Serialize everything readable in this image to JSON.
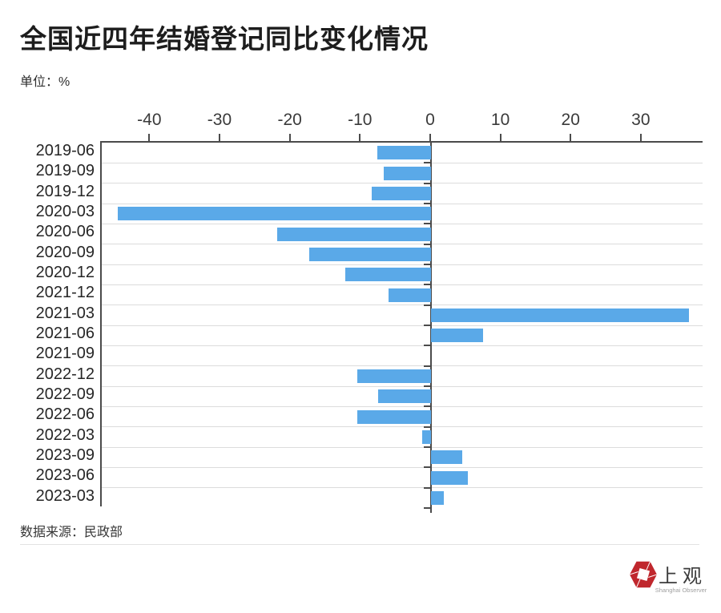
{
  "page": {
    "title": "全国近四年结婚登记同比变化情况",
    "unit_label": "单位：%",
    "source_label": "数据来源：民政部"
  },
  "chart_data": {
    "type": "bar",
    "orientation": "horizontal",
    "title": "全国近四年结婚登记同比变化情况",
    "unit": "%",
    "source": "民政部",
    "categories": [
      "2019-06",
      "2019-09",
      "2019-12",
      "2020-03",
      "2020-06",
      "2020-09",
      "2020-12",
      "2021-12",
      "2021-03",
      "2021-06",
      "2021-09",
      "2022-12",
      "2022-09",
      "2022-06",
      "2022-03",
      "2023-09",
      "2023-06",
      "2023-03"
    ],
    "values": [
      -7.7,
      -6.7,
      -8.5,
      -44.7,
      -22.0,
      -17.4,
      -12.2,
      -6.1,
      36.8,
      7.4,
      0,
      -10.5,
      -7.5,
      -10.5,
      -1.2,
      4.5,
      5.3,
      1.8
    ],
    "x_ticks": [
      -40,
      -30,
      -20,
      -10,
      0,
      10,
      20,
      30
    ],
    "xlim": [
      -47,
      38.8
    ],
    "grid": "horizontal-row-lines",
    "legend": "none",
    "bar_color": "#5aa9e8"
  },
  "branding": {
    "logo_cn": "上观",
    "logo_en": "Shanghai Observer"
  },
  "colors": {
    "bar": "#5aa9e8",
    "axis": "#4b4b4b",
    "gridline": "#dcdcdc",
    "logo_red": "#c0272d"
  }
}
